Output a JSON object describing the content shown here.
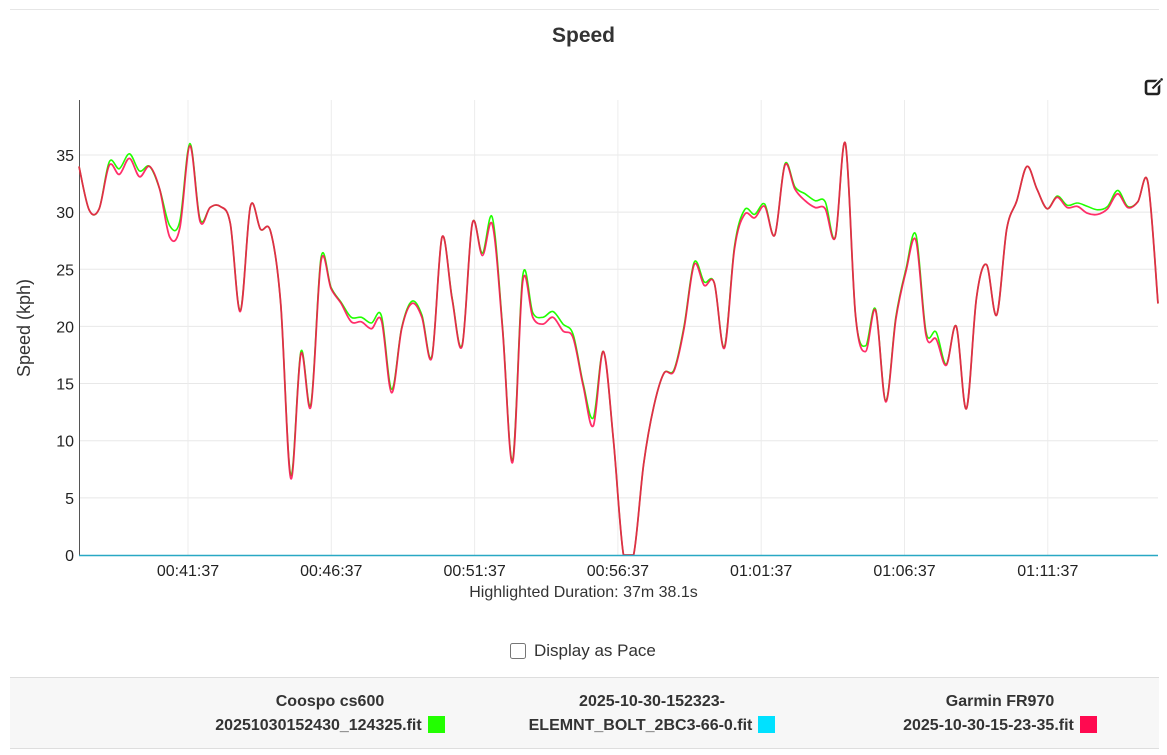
{
  "header": {
    "title": "Speed"
  },
  "toolbar": {
    "edit_icon": "edit-square-icon"
  },
  "chart_data": {
    "type": "line",
    "title": "Speed",
    "xlabel": "Highlighted Duration: 37m 38.1s",
    "ylabel": "Speed (kph)",
    "ylim": [
      0,
      39
    ],
    "yticks": [
      0,
      5,
      10,
      15,
      20,
      25,
      30,
      35
    ],
    "xticks": [
      "00:41:37",
      "00:46:37",
      "00:51:37",
      "00:56:37",
      "01:01:37",
      "01:06:37",
      "01:11:37"
    ],
    "grid": true,
    "x_range": [
      "00:37:50",
      "01:15:28"
    ],
    "series": [
      {
        "name": "Coospo cs600 20251030152430_124325.fit",
        "color": "#22ff00",
        "points": [
          [
            0,
            34.0
          ],
          [
            1,
            30.2
          ],
          [
            2,
            30.3
          ],
          [
            3,
            34.4
          ],
          [
            4,
            33.8
          ],
          [
            5,
            35.1
          ],
          [
            6,
            33.6
          ],
          [
            7,
            34.0
          ],
          [
            8,
            32.0
          ],
          [
            9,
            28.8
          ],
          [
            10,
            29.2
          ],
          [
            11,
            36.0
          ],
          [
            12,
            29.4
          ],
          [
            13,
            30.4
          ],
          [
            14,
            30.5
          ],
          [
            15,
            29.0
          ],
          [
            16,
            21.4
          ],
          [
            17,
            30.5
          ],
          [
            18,
            28.5
          ],
          [
            19,
            28.3
          ],
          [
            20,
            22.0
          ],
          [
            21,
            7.0
          ],
          [
            22,
            17.8
          ],
          [
            23,
            13.2
          ],
          [
            24,
            26.0
          ],
          [
            25,
            23.4
          ],
          [
            26,
            22.1
          ],
          [
            27,
            20.8
          ],
          [
            28,
            20.8
          ],
          [
            29,
            20.3
          ],
          [
            30,
            20.9
          ],
          [
            31,
            14.5
          ],
          [
            32,
            19.9
          ],
          [
            33,
            22.2
          ],
          [
            34,
            21.0
          ],
          [
            35,
            17.4
          ],
          [
            36,
            27.8
          ],
          [
            37,
            22.5
          ],
          [
            38,
            18.4
          ],
          [
            39,
            29.0
          ],
          [
            40,
            26.4
          ],
          [
            41,
            29.5
          ],
          [
            42,
            20.0
          ],
          [
            43,
            8.3
          ],
          [
            44,
            24.4
          ],
          [
            45,
            21.2
          ],
          [
            46,
            20.8
          ],
          [
            47,
            21.3
          ],
          [
            48,
            20.2
          ],
          [
            49,
            19.3
          ],
          [
            50,
            15.0
          ],
          [
            51,
            12.0
          ],
          [
            52,
            17.8
          ],
          [
            53,
            10.0
          ],
          [
            54,
            0.0
          ],
          [
            55,
            0.0
          ],
          [
            56,
            8.0
          ],
          [
            57,
            13.0
          ],
          [
            58,
            15.9
          ],
          [
            59,
            16.2
          ],
          [
            60,
            20.0
          ],
          [
            61,
            25.6
          ],
          [
            62,
            23.9
          ],
          [
            63,
            23.8
          ],
          [
            64,
            18.2
          ],
          [
            65,
            27.0
          ],
          [
            66,
            30.2
          ],
          [
            67,
            29.8
          ],
          [
            68,
            30.7
          ],
          [
            69,
            28.0
          ],
          [
            70,
            34.2
          ],
          [
            71,
            32.2
          ],
          [
            72,
            31.6
          ],
          [
            73,
            31.0
          ],
          [
            74,
            30.9
          ],
          [
            75,
            27.8
          ],
          [
            76,
            36.0
          ],
          [
            77,
            21.0
          ],
          [
            78,
            18.3
          ],
          [
            79,
            21.5
          ],
          [
            80,
            13.5
          ],
          [
            81,
            20.8
          ],
          [
            82,
            25.0
          ],
          [
            83,
            28.0
          ],
          [
            84,
            19.5
          ],
          [
            85,
            19.5
          ],
          [
            86,
            16.7
          ],
          [
            87,
            20.0
          ],
          [
            88,
            12.8
          ],
          [
            89,
            22.5
          ],
          [
            90,
            25.4
          ],
          [
            91,
            21.0
          ],
          [
            92,
            28.5
          ],
          [
            93,
            31.0
          ],
          [
            94,
            34.0
          ],
          [
            95,
            32.0
          ],
          [
            96,
            30.3
          ],
          [
            97,
            31.4
          ],
          [
            98,
            30.6
          ],
          [
            99,
            30.8
          ],
          [
            100,
            30.5
          ],
          [
            101,
            30.2
          ],
          [
            102,
            30.5
          ],
          [
            103,
            31.9
          ],
          [
            104,
            30.5
          ],
          [
            105,
            30.9
          ],
          [
            106,
            32.6
          ],
          [
            107,
            22.0
          ]
        ]
      },
      {
        "name": "2025-10-30-152323-ELEMNT_BOLT_2BC3-66-0.fit",
        "color": "#00e1ff",
        "points": []
      },
      {
        "name": "Garmin FR970 2025-10-30-15-23-35.fit",
        "color": "#ff0a50",
        "points": [
          [
            0,
            34.0
          ],
          [
            1,
            30.2
          ],
          [
            2,
            30.3
          ],
          [
            3,
            34.1
          ],
          [
            4,
            33.3
          ],
          [
            5,
            34.7
          ],
          [
            6,
            33.1
          ],
          [
            7,
            34.0
          ],
          [
            8,
            32.0
          ],
          [
            9,
            27.8
          ],
          [
            10,
            28.6
          ],
          [
            11,
            35.8
          ],
          [
            12,
            29.2
          ],
          [
            13,
            30.4
          ],
          [
            14,
            30.5
          ],
          [
            15,
            29.0
          ],
          [
            16,
            21.3
          ],
          [
            17,
            30.5
          ],
          [
            18,
            28.5
          ],
          [
            19,
            28.3
          ],
          [
            20,
            22.0
          ],
          [
            21,
            6.7
          ],
          [
            22,
            17.6
          ],
          [
            23,
            13.0
          ],
          [
            24,
            25.7
          ],
          [
            25,
            23.3
          ],
          [
            26,
            22.0
          ],
          [
            27,
            20.4
          ],
          [
            28,
            20.4
          ],
          [
            29,
            19.8
          ],
          [
            30,
            20.5
          ],
          [
            31,
            14.2
          ],
          [
            32,
            19.8
          ],
          [
            33,
            22.0
          ],
          [
            34,
            20.8
          ],
          [
            35,
            17.3
          ],
          [
            36,
            27.8
          ],
          [
            37,
            22.4
          ],
          [
            38,
            18.3
          ],
          [
            39,
            29.0
          ],
          [
            40,
            26.2
          ],
          [
            41,
            28.9
          ],
          [
            42,
            19.8
          ],
          [
            43,
            8.1
          ],
          [
            44,
            23.9
          ],
          [
            45,
            20.8
          ],
          [
            46,
            20.2
          ],
          [
            47,
            20.8
          ],
          [
            48,
            19.6
          ],
          [
            49,
            19.0
          ],
          [
            50,
            14.8
          ],
          [
            51,
            11.3
          ],
          [
            52,
            17.8
          ],
          [
            53,
            10.0
          ],
          [
            54,
            0.0
          ],
          [
            55,
            0.0
          ],
          [
            56,
            8.0
          ],
          [
            57,
            13.0
          ],
          [
            58,
            15.9
          ],
          [
            59,
            16.1
          ],
          [
            60,
            19.8
          ],
          [
            61,
            25.4
          ],
          [
            62,
            23.6
          ],
          [
            63,
            23.8
          ],
          [
            64,
            18.1
          ],
          [
            65,
            26.8
          ],
          [
            66,
            29.8
          ],
          [
            67,
            29.5
          ],
          [
            68,
            30.5
          ],
          [
            69,
            28.0
          ],
          [
            70,
            34.1
          ],
          [
            71,
            32.0
          ],
          [
            72,
            31.0
          ],
          [
            73,
            30.4
          ],
          [
            74,
            30.3
          ],
          [
            75,
            27.8
          ],
          [
            76,
            36.0
          ],
          [
            77,
            21.0
          ],
          [
            78,
            17.8
          ],
          [
            79,
            21.4
          ],
          [
            80,
            13.4
          ],
          [
            81,
            20.6
          ],
          [
            82,
            24.8
          ],
          [
            83,
            27.5
          ],
          [
            84,
            19.2
          ],
          [
            85,
            18.9
          ],
          [
            86,
            16.6
          ],
          [
            87,
            20.0
          ],
          [
            88,
            12.8
          ],
          [
            89,
            22.5
          ],
          [
            90,
            25.4
          ],
          [
            91,
            21.0
          ],
          [
            92,
            28.5
          ],
          [
            93,
            31.0
          ],
          [
            94,
            34.0
          ],
          [
            95,
            32.0
          ],
          [
            96,
            30.3
          ],
          [
            97,
            31.3
          ],
          [
            98,
            30.4
          ],
          [
            99,
            30.5
          ],
          [
            100,
            29.9
          ],
          [
            101,
            29.8
          ],
          [
            102,
            30.3
          ],
          [
            103,
            31.6
          ],
          [
            104,
            30.4
          ],
          [
            105,
            30.9
          ],
          [
            106,
            32.6
          ],
          [
            107,
            22.0
          ]
        ]
      }
    ],
    "legend_position": "bottom"
  },
  "duration_label": "Highlighted Duration: 37m 38.1s",
  "pace_toggle": {
    "label": "Display as Pace",
    "checked": false
  },
  "legend": {
    "items": [
      {
        "device": "Coospo cs600",
        "file": "20251030152430_124325.fit",
        "color": "#22ff00"
      },
      {
        "device": "2025-10-30-152323-",
        "file": "ELEMNT_BOLT_2BC3-66-0.fit",
        "color": "#00e1ff"
      },
      {
        "device": "Garmin FR970",
        "file": "2025-10-30-15-23-35.fit",
        "color": "#ff0a50"
      }
    ]
  }
}
